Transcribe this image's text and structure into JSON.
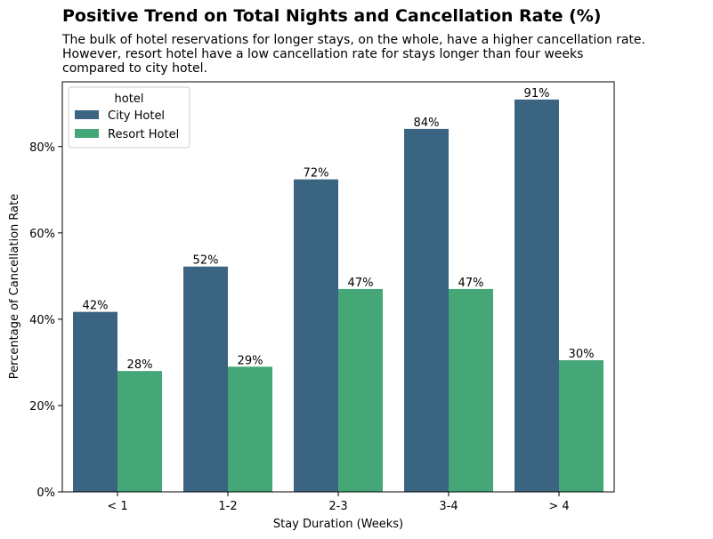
{
  "chart_data": {
    "type": "bar",
    "title": "Positive Trend on Total Nights and Cancellation Rate (%)",
    "subtitle": [
      "The bulk of hotel reservations for longer stays, on the whole, have a higher cancellation rate.",
      "However, resort hotel have a low cancellation rate for stays longer than four weeks",
      "compared to city hotel."
    ],
    "xlabel": "Stay Duration (Weeks)",
    "ylabel": "Percentage of Cancellation Rate",
    "categories": [
      "< 1",
      "1-2",
      "2-3",
      "3-4",
      "> 4"
    ],
    "ylim": [
      0,
      0.95
    ],
    "yticks": [
      0,
      0.2,
      0.4,
      0.6,
      0.8
    ],
    "ytick_labels": [
      "0%",
      "20%",
      "40%",
      "60%",
      "80%"
    ],
    "grid": false,
    "legend": {
      "title": "hotel",
      "placement": "top-left"
    },
    "series": [
      {
        "name": "City Hotel",
        "color": "#3b6482",
        "values": [
          0.417,
          0.522,
          0.724,
          0.841,
          0.909
        ],
        "labels": [
          "42%",
          "52%",
          "72%",
          "84%",
          "91%"
        ]
      },
      {
        "name": "Resort Hotel",
        "color": "#45a778",
        "values": [
          0.28,
          0.29,
          0.47,
          0.47,
          0.305
        ],
        "labels": [
          "28%",
          "29%",
          "47%",
          "47%",
          "30%"
        ]
      }
    ]
  }
}
